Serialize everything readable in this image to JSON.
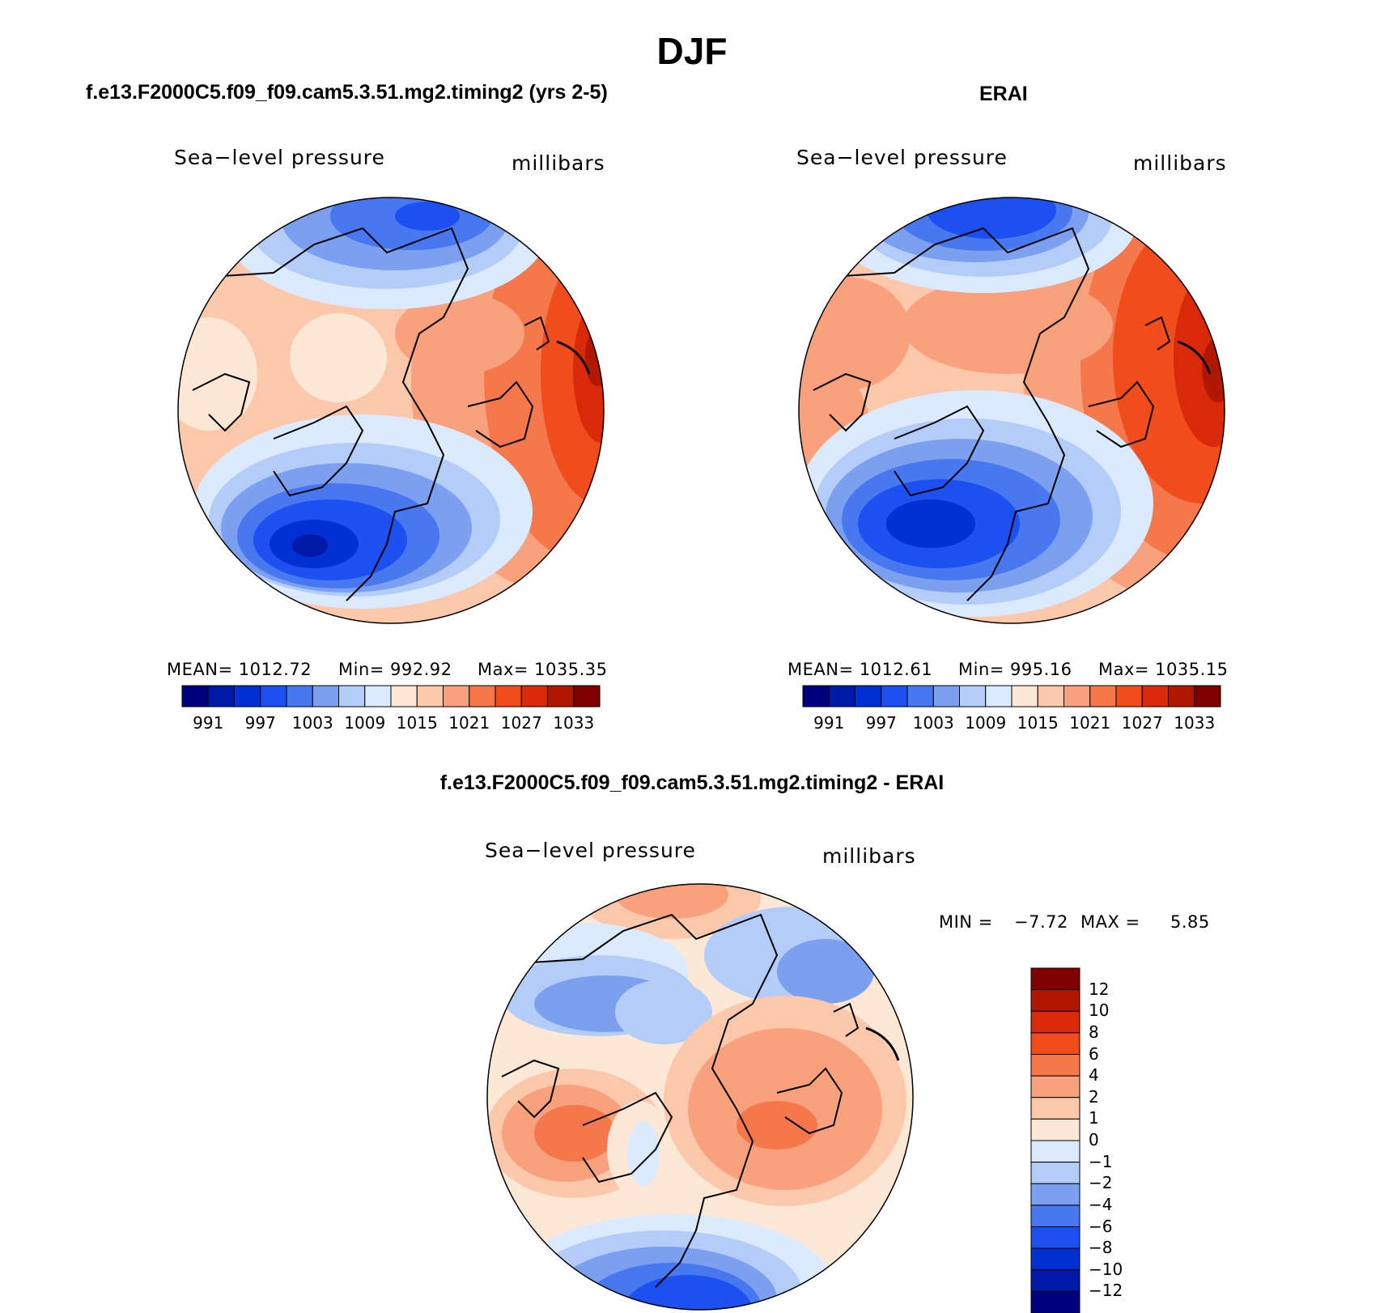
{
  "title": "DJF",
  "panels": [
    {
      "id": "model",
      "title": "f.e13.F2000C5.f09_f09.cam5.3.51.mg2.timing2 (yrs 2-5)",
      "variable": "Sea−level pressure",
      "units": "millibars",
      "stats": {
        "mean": "MEAN=  1012.72",
        "min": "Min=  992.92",
        "max": "Max=  1035.35"
      }
    },
    {
      "id": "obs",
      "title": "ERAI",
      "variable": "Sea−level pressure",
      "units": "millibars",
      "stats": {
        "mean": "MEAN=  1012.61",
        "min": "Min=  995.16",
        "max": "Max=  1035.15"
      }
    }
  ],
  "difference": {
    "title": "f.e13.F2000C5.f09_f09.cam5.3.51.mg2.timing2 - ERAI",
    "variable": "Sea−level pressure",
    "units": "millibars",
    "min_label": "MIN =",
    "min_value": "−7.72",
    "max_label": "MAX =",
    "max_value": "5.85"
  },
  "colorbar_abs": {
    "tick_labels": [
      "991",
      "997",
      "1003",
      "1009",
      "1015",
      "1021",
      "1027",
      "1033"
    ],
    "colors": [
      "#00007f",
      "#0018a8",
      "#0030d2",
      "#1c50f0",
      "#4878f0",
      "#7ca0f0",
      "#b4ccf8",
      "#dceaff",
      "#fde8d6",
      "#fcc8ac",
      "#f9a07c",
      "#f5784c",
      "#f04c1c",
      "#d82a08",
      "#b01804",
      "#7f0000"
    ]
  },
  "colorbar_diff": {
    "tick_labels": [
      "12",
      "10",
      "8",
      "6",
      "4",
      "2",
      "1",
      "0",
      "−1",
      "−2",
      "−4",
      "−6",
      "−8",
      "−10",
      "−12"
    ],
    "colors": [
      "#7f0000",
      "#b01804",
      "#d82a08",
      "#f04c1c",
      "#f5784c",
      "#f9a07c",
      "#fcc8ac",
      "#fde8d6",
      "#dceaff",
      "#b4ccf8",
      "#7ca0f0",
      "#4878f0",
      "#1c50f0",
      "#0030d2",
      "#0018a8",
      "#00007f"
    ]
  }
}
